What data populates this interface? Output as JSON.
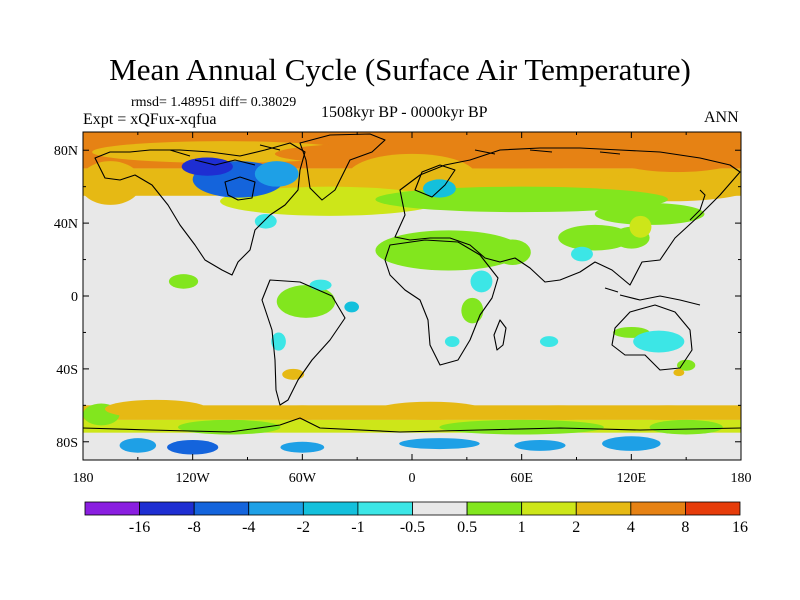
{
  "chart_data": {
    "type": "heatmap",
    "title": "Mean Annual Cycle (Surface Air Temperature)",
    "stats_label": "rmsd= 1.48951 diff= 0.38029",
    "experiment_label": "Expt = xQFux-xqfua",
    "period_label": "1508kyr BP - 0000kyr BP",
    "season_label": "ANN",
    "x_ticks": [
      "180",
      "120W",
      "60W",
      "0",
      "60E",
      "120E",
      "180"
    ],
    "y_ticks": [
      "80N",
      "40N",
      "0",
      "40S",
      "80S"
    ],
    "x_range": [
      -180,
      180
    ],
    "y_range": [
      -90,
      90
    ],
    "colorbar": {
      "labels": [
        "-16",
        "-8",
        "-4",
        "-2",
        "-1",
        "-0.5",
        "0.5",
        "1",
        "2",
        "4",
        "8",
        "16"
      ],
      "colors": [
        "#8a1ee0",
        "#1e2ed2",
        "#1464dc",
        "#1ea0e6",
        "#14c0dc",
        "#3ce6e6",
        "#e8e8e8",
        "#82e61e",
        "#cde619",
        "#e6b914",
        "#e68214",
        "#e63c0a"
      ]
    },
    "regions": [
      {
        "level": "4",
        "lon": -103,
        "lat": 79,
        "rx": 72,
        "ry": 6
      },
      {
        "level": "8",
        "lon": 50,
        "lat": 78,
        "rx": 125,
        "ry": 8
      },
      {
        "level": "8",
        "lon": 145,
        "lat": 76,
        "rx": 35,
        "ry": 8
      },
      {
        "level": "4",
        "lon": 0,
        "lat": 66,
        "rx": 35,
        "ry": 12
      },
      {
        "level": "4",
        "lon": -165,
        "lat": 62,
        "rx": 17,
        "ry": 12
      },
      {
        "level": "4",
        "lon": 142,
        "lat": 60,
        "rx": 45,
        "ry": 8
      },
      {
        "level": "2",
        "lon": -45,
        "lat": 52,
        "rx": 60,
        "ry": 8
      },
      {
        "level": "1",
        "lon": 60,
        "lat": 53,
        "rx": 80,
        "ry": 7
      },
      {
        "level": "1",
        "lon": 130,
        "lat": 45,
        "rx": 30,
        "ry": 6
      },
      {
        "level": "-4",
        "lon": -95,
        "lat": 64,
        "rx": 25,
        "ry": 10
      },
      {
        "level": "-8",
        "lon": -112,
        "lat": 71,
        "rx": 14,
        "ry": 5
      },
      {
        "level": "-2",
        "lon": -74,
        "lat": 67,
        "rx": 12,
        "ry": 7
      },
      {
        "level": "-1",
        "lon": 15,
        "lat": 59,
        "rx": 9,
        "ry": 5
      },
      {
        "level": "1",
        "lon": 20,
        "lat": 25,
        "rx": 40,
        "ry": 11
      },
      {
        "level": "1",
        "lon": 55,
        "lat": 24,
        "rx": 10,
        "ry": 7
      },
      {
        "level": "1",
        "lon": 100,
        "lat": 32,
        "rx": 20,
        "ry": 7
      },
      {
        "level": "1",
        "lon": 120,
        "lat": 32,
        "rx": 10,
        "ry": 6
      },
      {
        "level": "2",
        "lon": 125,
        "lat": 38,
        "rx": 6,
        "ry": 6
      },
      {
        "level": "-0.5",
        "lon": -80,
        "lat": 41,
        "rx": 6,
        "ry": 4
      },
      {
        "level": "-0.5",
        "lon": 38,
        "lat": 8,
        "rx": 6,
        "ry": 6
      },
      {
        "level": "-0.5",
        "lon": 93,
        "lat": 23,
        "rx": 6,
        "ry": 4
      },
      {
        "level": "1",
        "lon": -58,
        "lat": -3,
        "rx": 16,
        "ry": 9
      },
      {
        "level": "1",
        "lon": -125,
        "lat": 8,
        "rx": 8,
        "ry": 4
      },
      {
        "level": "-0.5",
        "lon": -50,
        "lat": 6,
        "rx": 6,
        "ry": 3
      },
      {
        "level": "-1",
        "lon": -33,
        "lat": -6,
        "rx": 4,
        "ry": 3
      },
      {
        "level": "1",
        "lon": 33,
        "lat": -8,
        "rx": 6,
        "ry": 7
      },
      {
        "level": "-0.5",
        "lon": -73,
        "lat": -25,
        "rx": 4,
        "ry": 5
      },
      {
        "level": "-0.5",
        "lon": 22,
        "lat": -25,
        "rx": 4,
        "ry": 3
      },
      {
        "level": "-0.5",
        "lon": 75,
        "lat": -25,
        "rx": 5,
        "ry": 3
      },
      {
        "level": "1",
        "lon": 120,
        "lat": -20,
        "rx": 10,
        "ry": 3
      },
      {
        "level": "-0.5",
        "lon": 135,
        "lat": -25,
        "rx": 14,
        "ry": 6
      },
      {
        "level": "1",
        "lon": 150,
        "lat": -38,
        "rx": 5,
        "ry": 3
      },
      {
        "level": "4",
        "lon": 146,
        "lat": -42,
        "rx": 3,
        "ry": 2
      },
      {
        "level": "4",
        "lon": -65,
        "lat": -43,
        "rx": 6,
        "ry": 3
      },
      {
        "level": "1",
        "lon": -170,
        "lat": -65,
        "rx": 10,
        "ry": 6
      },
      {
        "level": "4",
        "lon": -140,
        "lat": -62,
        "rx": 28,
        "ry": 5
      },
      {
        "level": "4",
        "lon": -60,
        "lat": -64,
        "rx": 18,
        "ry": 4
      },
      {
        "level": "4",
        "lon": 10,
        "lat": -63,
        "rx": 30,
        "ry": 5
      },
      {
        "level": "4",
        "lon": 80,
        "lat": -64,
        "rx": 30,
        "ry": 4
      },
      {
        "level": "4",
        "lon": 140,
        "lat": -64,
        "rx": 28,
        "ry": 4
      },
      {
        "level": "1",
        "lon": -100,
        "lat": -72,
        "rx": 28,
        "ry": 4
      },
      {
        "level": "1",
        "lon": 60,
        "lat": -72,
        "rx": 45,
        "ry": 4
      },
      {
        "level": "1",
        "lon": 150,
        "lat": -72,
        "rx": 20,
        "ry": 4
      },
      {
        "level": "-2",
        "lon": -150,
        "lat": -82,
        "rx": 10,
        "ry": 4
      },
      {
        "level": "-4",
        "lon": -120,
        "lat": -83,
        "rx": 14,
        "ry": 4
      },
      {
        "level": "-2",
        "lon": -60,
        "lat": -83,
        "rx": 12,
        "ry": 3
      },
      {
        "level": "-2",
        "lon": 15,
        "lat": -81,
        "rx": 22,
        "ry": 3
      },
      {
        "level": "-2",
        "lon": 70,
        "lat": -82,
        "rx": 14,
        "ry": 3
      },
      {
        "level": "-2",
        "lon": 120,
        "lat": -81,
        "rx": 16,
        "ry": 4
      }
    ]
  }
}
